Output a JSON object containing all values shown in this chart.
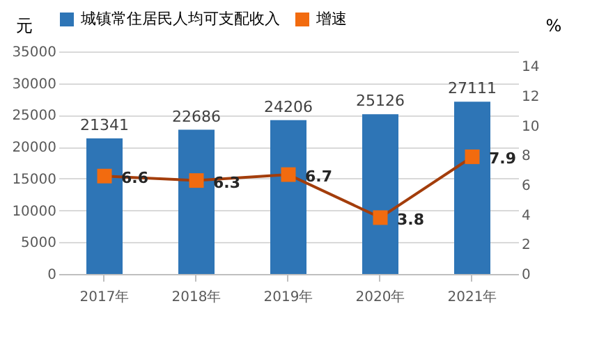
{
  "chart_data": {
    "type": "bar",
    "categories": [
      "2017年",
      "2018年",
      "2019年",
      "2020年",
      "2021年"
    ],
    "series": [
      {
        "name": "城镇常住居民人均可支配收入",
        "color": "#2e75b6",
        "values": [
          21341,
          22686,
          24206,
          25126,
          27111
        ]
      },
      {
        "name": "增速",
        "type": "line",
        "axis": "y2",
        "color": "#f26b0f",
        "values": [
          6.6,
          6.3,
          6.7,
          3.8,
          7.9
        ]
      }
    ],
    "ylabel": "元",
    "y2label": "%",
    "ylim": [
      0,
      35000
    ],
    "yticks": [
      0,
      5000,
      10000,
      15000,
      20000,
      25000,
      30000,
      35000
    ],
    "y2lim": [
      0,
      15
    ],
    "y2ticks": [
      0,
      2,
      4,
      6,
      8,
      10,
      12,
      14
    ],
    "grid": "y",
    "legend": "top",
    "data_labels": true,
    "marker": "square",
    "line_style": "solid"
  }
}
